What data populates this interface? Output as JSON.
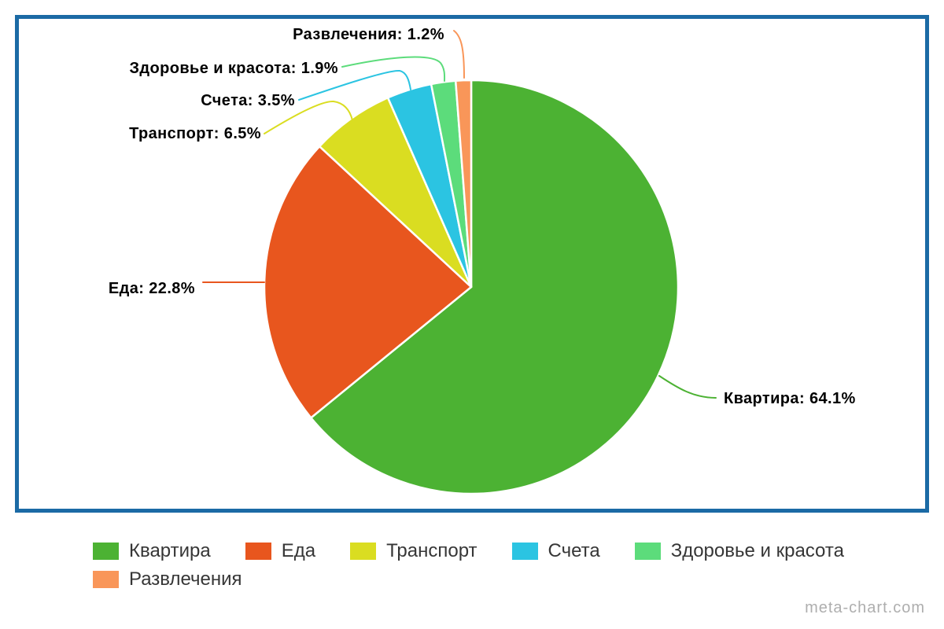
{
  "chart_data": {
    "type": "pie",
    "title": "",
    "categories": [
      "Квартира",
      "Еда",
      "Транспорт",
      "Счета",
      "Здоровье и красота",
      "Развлечения"
    ],
    "values": [
      64.1,
      22.8,
      6.5,
      3.5,
      1.9,
      1.2
    ],
    "unit": "%",
    "start_angle_deg": 0,
    "direction": "clockwise",
    "legend_position": "bottom",
    "frame_color": "#1b6aa5",
    "slice_separator_color": "#ffffff",
    "slices": [
      {
        "label": "Квартира",
        "value": 64.1,
        "color": "#4cb233",
        "callout": "Квартира: 64.1%"
      },
      {
        "label": "Еда",
        "value": 22.8,
        "color": "#e8561e",
        "callout": "Еда: 22.8%"
      },
      {
        "label": "Транспорт",
        "value": 6.5,
        "color": "#dadd21",
        "callout": "Транспорт: 6.5%"
      },
      {
        "label": "Счета",
        "value": 3.5,
        "color": "#2bc4e2",
        "callout": "Счета: 3.5%"
      },
      {
        "label": "Здоровье и красота",
        "value": 1.9,
        "color": "#5cdc7b",
        "callout": "Здоровье и красота: 1.9%"
      },
      {
        "label": "Развлечения",
        "value": 1.2,
        "color": "#f99659",
        "callout": "Развлечения: 1.2%"
      }
    ]
  },
  "watermark": "meta-chart.com"
}
